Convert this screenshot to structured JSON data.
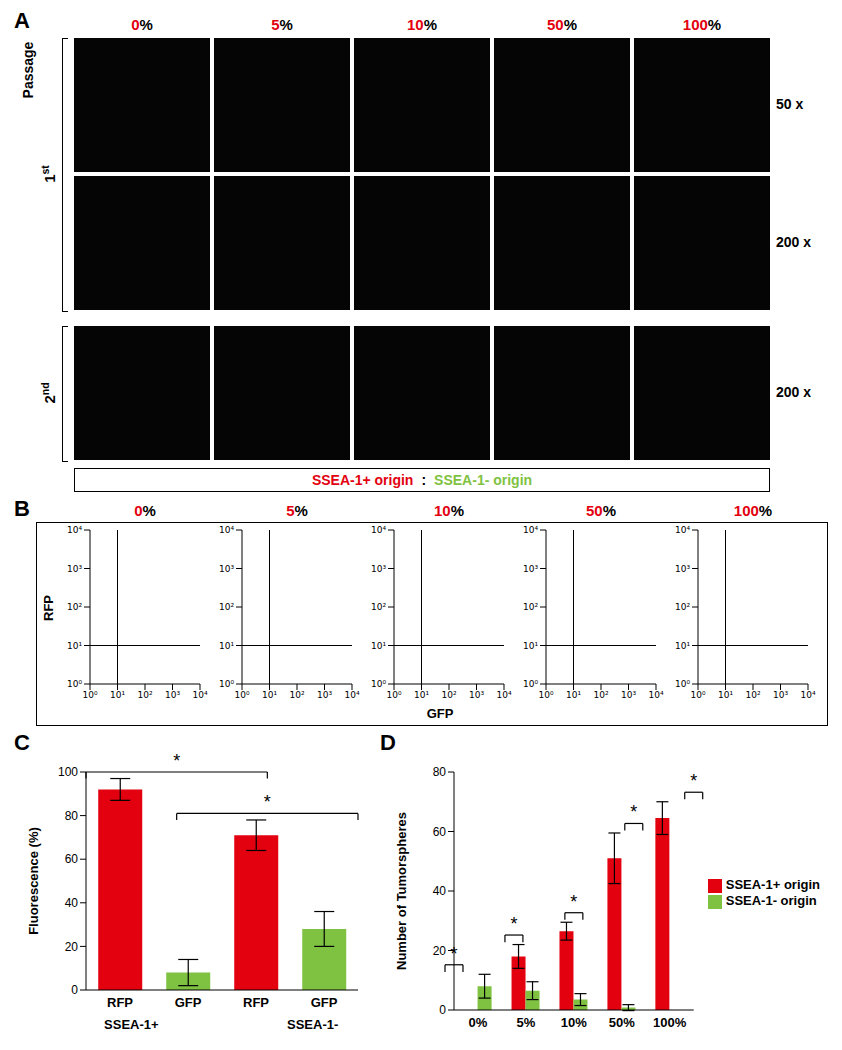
{
  "panel_labels": [
    "A",
    "B",
    "C",
    "D"
  ],
  "panel_a": {
    "column_labels": [
      "0%",
      "5%",
      "10%",
      "50%",
      "100%"
    ],
    "row_group_title": "Passage",
    "row_groups": [
      {
        "label": "1st",
        "rows": [
          "50 x",
          "200 x"
        ]
      },
      {
        "label": "2nd",
        "rows": [
          "200 x"
        ]
      }
    ],
    "legend": [
      {
        "text": "SSEA-1+ origin",
        "color": "#e3000f"
      },
      {
        "text": ":"
      },
      {
        "text": "SSEA-1- origin",
        "color": "#7fc241"
      }
    ]
  },
  "panel_b": {
    "type": "scatter",
    "column_labels": [
      "0%",
      "5%",
      "10%",
      "50%",
      "100%"
    ],
    "x_label": "GFP",
    "y_label": "RFP",
    "log": true,
    "xlim": [
      1,
      10000
    ],
    "ylim": [
      1,
      10000
    ],
    "xticks": [
      {
        "value": 1,
        "label": "10⁰"
      },
      {
        "value": 10,
        "label": "10¹"
      },
      {
        "value": 100,
        "label": "10²"
      },
      {
        "value": 1000,
        "label": "10³"
      },
      {
        "value": 10000,
        "label": "10⁴"
      }
    ],
    "yticks": [
      {
        "value": 1,
        "label": "10⁰"
      },
      {
        "value": 10,
        "label": "10¹"
      },
      {
        "value": 100,
        "label": "10²"
      },
      {
        "value": 1000,
        "label": "10³"
      },
      {
        "value": 10000,
        "label": "10⁴"
      }
    ],
    "reference_lines": {
      "x": 10,
      "y": 10
    }
  },
  "chart_data": [
    {
      "type": "bar",
      "categories": [
        "RFP",
        "GFP",
        "RFP",
        "GFP"
      ],
      "groups": [
        {
          "label": "SSEA-1+",
          "members": [
            0,
            1
          ]
        },
        {
          "label": "SSEA-1-",
          "members": [
            2,
            3
          ]
        }
      ],
      "values": [
        92,
        8,
        71,
        28
      ],
      "errors": [
        5,
        6,
        7,
        8
      ],
      "colors": [
        "#e3000f",
        "#7fc241",
        "#e3000f",
        "#7fc241"
      ],
      "y_label": "Fluorescence (%)",
      "ylim": [
        0,
        100
      ],
      "yticks": [
        0,
        20,
        40,
        60,
        80,
        100
      ],
      "annotations": [
        {
          "from": 0,
          "to": 2,
          "label": "*"
        },
        {
          "from": 1,
          "to": 3,
          "label": "*"
        }
      ]
    },
    {
      "type": "bar",
      "categories": [
        "0%",
        "5%",
        "10%",
        "50%",
        "100%"
      ],
      "series": [
        {
          "name": "SSEA-1+ origin",
          "color": "#e3000f",
          "values": [
            0,
            18,
            26.5,
            51,
            64.5
          ],
          "errors": [
            0,
            4,
            3,
            8.5,
            5.5
          ]
        },
        {
          "name": "SSEA-1- origin",
          "color": "#7fc241",
          "values": [
            8,
            6.5,
            3.5,
            0.8,
            0
          ],
          "errors": [
            4,
            3,
            2,
            1,
            0
          ]
        }
      ],
      "y_label": "Number of Tumorspheres",
      "ylim": [
        0,
        80
      ],
      "yticks": [
        0,
        20,
        40,
        60,
        80
      ],
      "legend": "right",
      "annotations": [
        {
          "category": 0,
          "label": "*"
        },
        {
          "category": 1,
          "label": "*"
        },
        {
          "category": 2,
          "label": "*"
        },
        {
          "category": 3,
          "label": "*"
        },
        {
          "category": 4,
          "label": "*"
        }
      ]
    }
  ]
}
